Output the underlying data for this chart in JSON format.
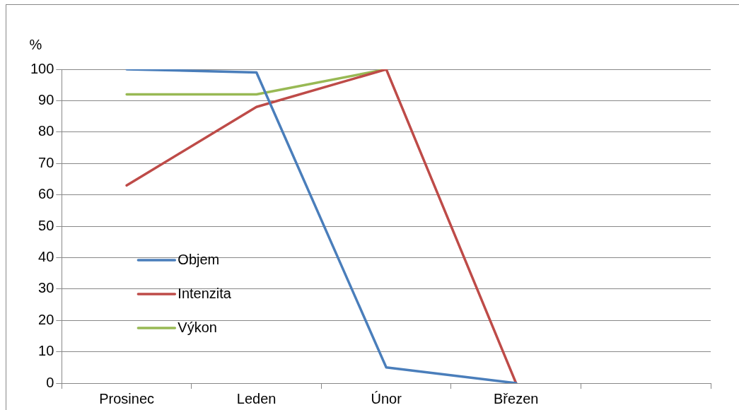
{
  "chart_data": {
    "type": "line",
    "ylabel": "%",
    "categories": [
      "Prosinec",
      "Leden",
      "Únor",
      "Březen",
      null
    ],
    "series": [
      {
        "name": "Objem",
        "color": "#4a7ebb",
        "values": [
          100,
          99,
          5,
          0,
          null
        ]
      },
      {
        "name": "Intenzita",
        "color": "#be4b48",
        "values": [
          63,
          88,
          100,
          0,
          null
        ]
      },
      {
        "name": "Výkon",
        "color": "#98b954",
        "values": [
          92,
          92,
          100,
          null,
          null
        ]
      }
    ],
    "ylim": [
      0,
      100
    ],
    "yticks": [
      0,
      10,
      20,
      30,
      40,
      50,
      60,
      70,
      80,
      90,
      100
    ],
    "grid": "y",
    "legend": "left",
    "marker": "none",
    "line_style": "solid"
  }
}
